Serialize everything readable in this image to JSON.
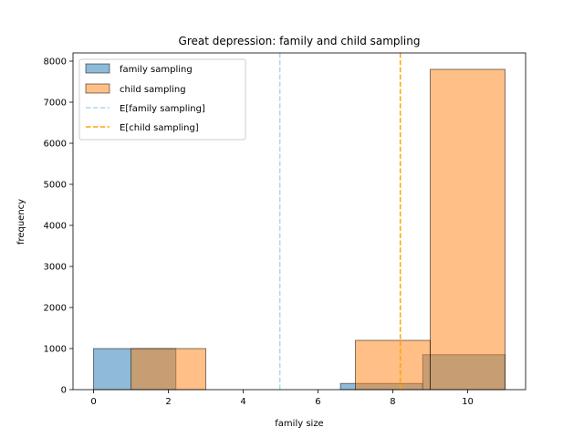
{
  "chart_data": {
    "type": "bar",
    "title": "Great depression: family and child sampling",
    "xlabel": "family size",
    "ylabel": "frequency",
    "xlim": [
      -0.55,
      11.55
    ],
    "ylim": [
      0,
      8200
    ],
    "xticks": [
      0,
      2,
      4,
      6,
      8,
      10
    ],
    "yticks": [
      0,
      1000,
      2000,
      3000,
      4000,
      5000,
      6000,
      7000,
      8000
    ],
    "grid": false,
    "legend_position": "top-left",
    "series": [
      {
        "name": "family sampling",
        "color": "#1f77b4",
        "alpha": 0.5,
        "bins": [
          {
            "x0": 0,
            "x1": 2.2,
            "value": 1000
          },
          {
            "x0": 6.6,
            "x1": 8.8,
            "value": 150
          },
          {
            "x0": 8.8,
            "x1": 11,
            "value": 850
          }
        ]
      },
      {
        "name": "child sampling",
        "color": "#ff7f0e",
        "alpha": 0.5,
        "bins": [
          {
            "x0": 1,
            "x1": 3,
            "value": 1000
          },
          {
            "x0": 7,
            "x1": 9,
            "value": 1200
          },
          {
            "x0": 9,
            "x1": 11,
            "value": 7800
          }
        ]
      }
    ],
    "vlines": [
      {
        "name": "E[family sampling]",
        "x": 4.98,
        "color": "#add8e6"
      },
      {
        "name": "E[child sampling]",
        "x": 8.2,
        "color": "#ffa500"
      }
    ]
  }
}
